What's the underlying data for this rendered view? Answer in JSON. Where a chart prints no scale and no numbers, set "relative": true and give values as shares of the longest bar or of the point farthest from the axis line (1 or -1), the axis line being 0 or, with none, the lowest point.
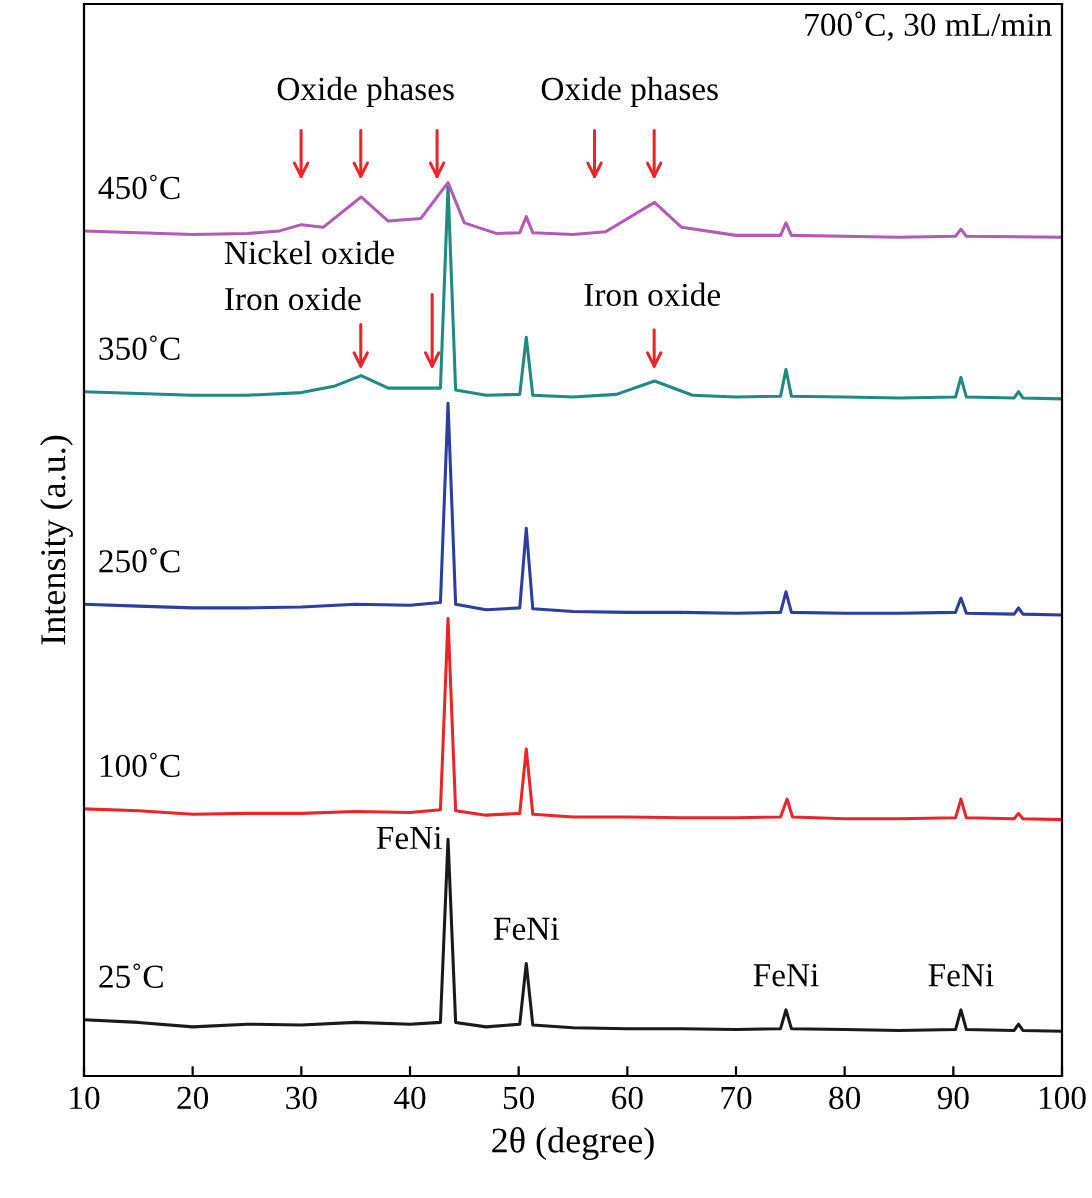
{
  "chart_data": {
    "type": "line",
    "relative": true,
    "xlabel": "2θ (degree)",
    "ylabel": "Intensity (a.u.)",
    "xlim": [
      10,
      100
    ],
    "xticks": [
      10,
      20,
      30,
      40,
      50,
      60,
      70,
      80,
      90,
      100
    ],
    "grid": false,
    "legend": false,
    "marker": "none",
    "line_style": "solid",
    "series": [
      {
        "name": "25˚C",
        "color": "#1a1a1a",
        "x": [
          10,
          15,
          20,
          25,
          30,
          35,
          40,
          42.8,
          43.5,
          44.2,
          47,
          50.1,
          50.7,
          51.3,
          55,
          60,
          65,
          70,
          74.1,
          74.6,
          75.1,
          80,
          85,
          90.2,
          90.7,
          91.2,
          95.6,
          96,
          96.4,
          100
        ],
        "values": [
          0.063,
          0.06,
          0.055,
          0.058,
          0.057,
          0.06,
          0.058,
          0.06,
          0.265,
          0.06,
          0.055,
          0.058,
          0.126,
          0.057,
          0.054,
          0.053,
          0.053,
          0.052,
          0.053,
          0.074,
          0.053,
          0.052,
          0.051,
          0.052,
          0.074,
          0.052,
          0.051,
          0.058,
          0.051,
          0.05
        ]
      },
      {
        "name": "100˚C",
        "color": "#e8262a",
        "x": [
          10,
          15,
          20,
          25,
          30,
          35,
          40,
          42.8,
          43.5,
          44.2,
          47,
          50.1,
          50.7,
          51.3,
          55,
          60,
          65,
          70,
          74.1,
          74.7,
          75.2,
          80,
          85,
          90.2,
          90.7,
          91.2,
          95.6,
          96,
          96.4,
          100
        ],
        "values": [
          0.299,
          0.297,
          0.293,
          0.294,
          0.294,
          0.296,
          0.295,
          0.298,
          0.512,
          0.297,
          0.292,
          0.294,
          0.366,
          0.293,
          0.29,
          0.29,
          0.289,
          0.289,
          0.29,
          0.31,
          0.29,
          0.288,
          0.288,
          0.289,
          0.31,
          0.289,
          0.288,
          0.294,
          0.288,
          0.287
        ]
      },
      {
        "name": "250˚C",
        "color": "#2e3d9e",
        "x": [
          10,
          15,
          20,
          25,
          30,
          35,
          40,
          42.8,
          43.5,
          44.2,
          47,
          50.1,
          50.7,
          51.3,
          55,
          60,
          65,
          70,
          74.1,
          74.6,
          75.1,
          80,
          85,
          90.2,
          90.7,
          91.2,
          95.6,
          96,
          96.4,
          100
        ],
        "values": [
          0.528,
          0.526,
          0.524,
          0.524,
          0.525,
          0.528,
          0.527,
          0.53,
          0.753,
          0.528,
          0.522,
          0.524,
          0.613,
          0.523,
          0.52,
          0.519,
          0.519,
          0.518,
          0.519,
          0.542,
          0.519,
          0.518,
          0.518,
          0.519,
          0.535,
          0.518,
          0.517,
          0.524,
          0.517,
          0.516
        ]
      },
      {
        "name": "350˚C",
        "color": "#1f8a80",
        "x": [
          10,
          15,
          20,
          25,
          30,
          33,
          35.5,
          38,
          42.8,
          43.5,
          44.2,
          47,
          50.1,
          50.7,
          51.3,
          55,
          59,
          62.5,
          66,
          70,
          74.1,
          74.6,
          75.1,
          80,
          85,
          90.2,
          90.7,
          91.2,
          95.6,
          96,
          96.4,
          100
        ],
        "values": [
          0.766,
          0.764,
          0.762,
          0.762,
          0.765,
          0.772,
          0.784,
          0.77,
          0.77,
          0.996,
          0.768,
          0.762,
          0.763,
          0.827,
          0.762,
          0.76,
          0.763,
          0.778,
          0.762,
          0.76,
          0.761,
          0.791,
          0.761,
          0.76,
          0.759,
          0.76,
          0.782,
          0.76,
          0.759,
          0.766,
          0.759,
          0.758
        ]
      },
      {
        "name": "450˚C",
        "color": "#b25ab8",
        "x": [
          10,
          15,
          20,
          25,
          28,
          30,
          32,
          35.5,
          38,
          41,
          43.5,
          45,
          48,
          50.1,
          50.7,
          51.3,
          55,
          58,
          62.5,
          65,
          70,
          74.1,
          74.6,
          75.1,
          80,
          85,
          90.2,
          90.7,
          91.2,
          100
        ],
        "values": [
          0.946,
          0.944,
          0.942,
          0.943,
          0.946,
          0.953,
          0.95,
          0.984,
          0.957,
          0.96,
          1.0,
          0.955,
          0.943,
          0.944,
          0.962,
          0.944,
          0.942,
          0.945,
          0.978,
          0.95,
          0.941,
          0.941,
          0.955,
          0.941,
          0.94,
          0.939,
          0.94,
          0.948,
          0.94,
          0.939
        ]
      }
    ],
    "annotations": [
      "700˚C, 30 mL/min",
      "Oxide phases",
      "Oxide phases",
      "Nickel oxide",
      "Iron oxide",
      "Iron oxide",
      {
        "text": "FeNi",
        "x": 43.5,
        "y": 0.265
      },
      {
        "text": "FeNi",
        "x": 50.7,
        "y": 0.126
      },
      {
        "text": "FeNi",
        "x": 74.6,
        "y": 0.074
      },
      {
        "text": "FeNi",
        "x": 90.7,
        "y": 0.074
      }
    ]
  }
}
